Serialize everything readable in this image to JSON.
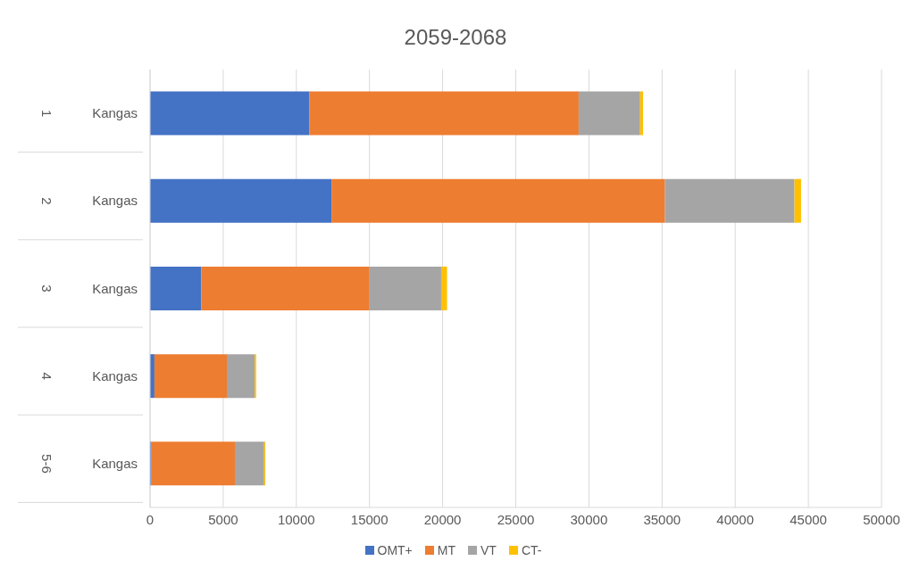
{
  "chart_data": {
    "type": "bar",
    "orientation": "horizontal",
    "stacked": true,
    "title": "2059-2068",
    "categories": [
      "Kangas",
      "Kangas",
      "Kangas",
      "Kangas",
      "Kangas"
    ],
    "annotations": [
      "1",
      "2",
      "3",
      "4",
      "5-6"
    ],
    "series": [
      {
        "name": "OMT+",
        "color": "#4472c4",
        "values": [
          10900,
          12400,
          3500,
          300,
          100
        ]
      },
      {
        "name": "MT",
        "color": "#ed7d31",
        "values": [
          18400,
          22800,
          11500,
          4950,
          5700
        ]
      },
      {
        "name": "VT",
        "color": "#a5a5a5",
        "values": [
          4200,
          8850,
          4900,
          1900,
          2000
        ]
      },
      {
        "name": "CT-",
        "color": "#ffc000",
        "values": [
          200,
          450,
          400,
          100,
          80
        ]
      }
    ],
    "xlim": [
      0,
      50000
    ],
    "xticks": [
      0,
      5000,
      10000,
      15000,
      20000,
      25000,
      30000,
      35000,
      40000,
      45000,
      50000
    ],
    "grid": "x",
    "legend": "bottom"
  }
}
